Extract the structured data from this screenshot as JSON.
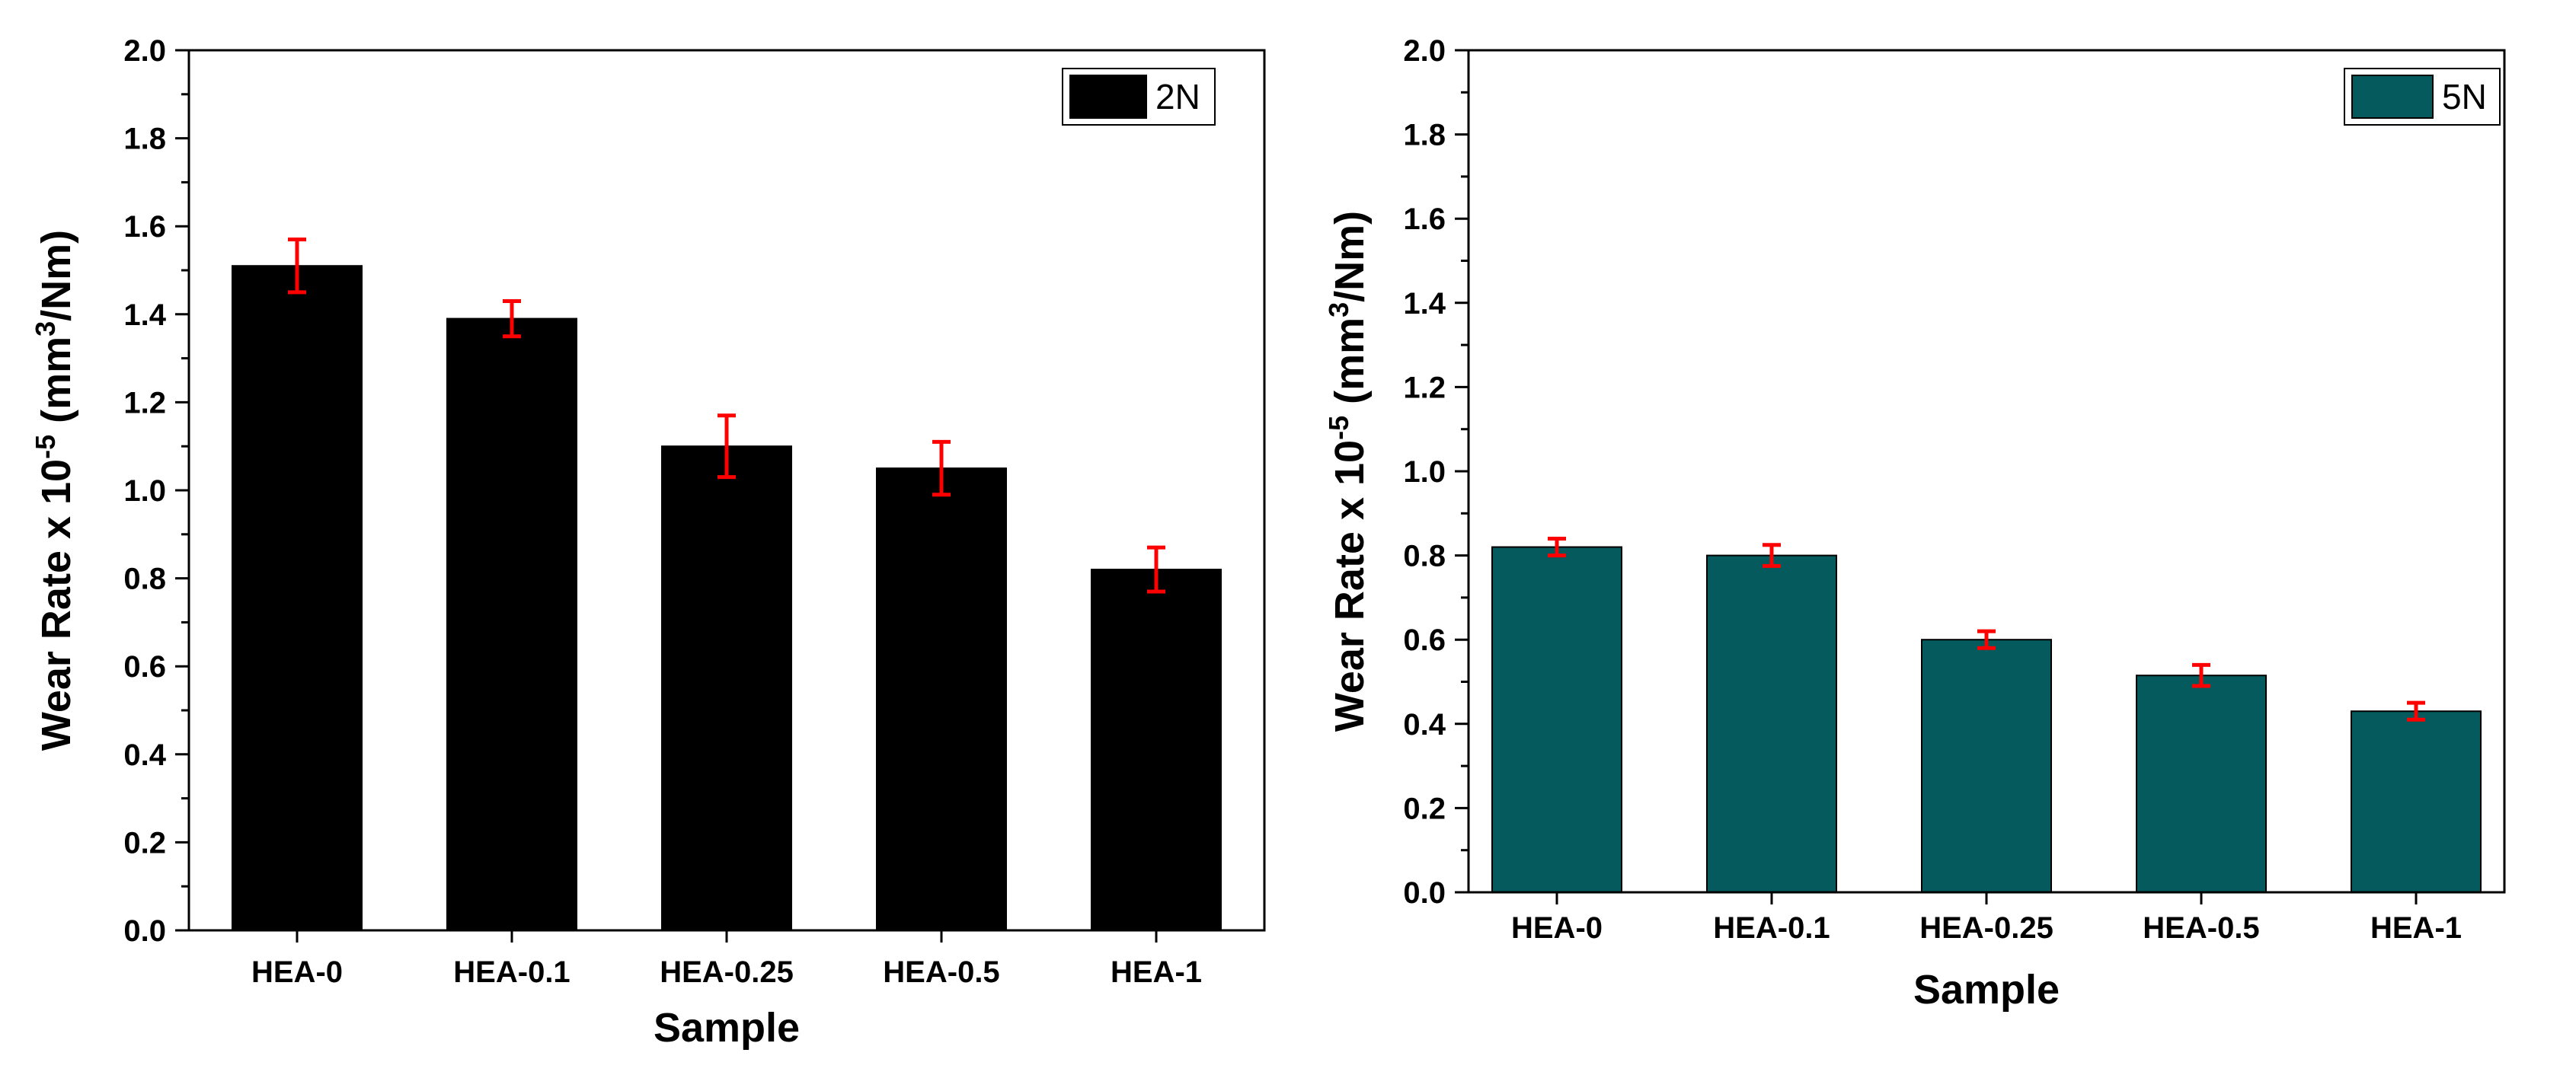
{
  "chart_data": [
    {
      "type": "bar",
      "title": "",
      "categories": [
        "HEA-0",
        "HEA-0.1",
        "HEA-0.25",
        "HEA-0.5",
        "HEA-1"
      ],
      "series": [
        {
          "name": "2N",
          "values": [
            1.51,
            1.39,
            1.1,
            1.05,
            0.82
          ],
          "errors": [
            0.06,
            0.04,
            0.07,
            0.06,
            0.05
          ],
          "color": "#000000"
        }
      ],
      "xlabel": "Sample",
      "ylabel_main": "Wear Rate x 10",
      "ylabel_exp": "-5",
      "ylabel_unit_pre": " (mm",
      "ylabel_unit_exp": "3",
      "ylabel_unit_post": "/Nm)",
      "ylim": [
        0,
        2.0
      ],
      "yticks": [
        "0.0",
        "0.2",
        "0.4",
        "0.6",
        "0.8",
        "1.0",
        "1.2",
        "1.4",
        "1.6",
        "1.8",
        "2.0"
      ],
      "legend_position": "top-right",
      "error_color": "#ff0000"
    },
    {
      "type": "bar",
      "title": "",
      "categories": [
        "HEA-0",
        "HEA-0.1",
        "HEA-0.25",
        "HEA-0.5",
        "HEA-1"
      ],
      "series": [
        {
          "name": "5N",
          "values": [
            0.82,
            0.8,
            0.6,
            0.515,
            0.43
          ],
          "errors": [
            0.02,
            0.025,
            0.02,
            0.025,
            0.02
          ],
          "color": "#045a5c"
        }
      ],
      "xlabel": "Sample",
      "ylabel_main": "Wear Rate x 10",
      "ylabel_exp": "-5",
      "ylabel_unit_pre": " (mm",
      "ylabel_unit_exp": "3",
      "ylabel_unit_post": "/Nm)",
      "ylim": [
        0,
        2.0
      ],
      "yticks": [
        "0.0",
        "0.2",
        "0.4",
        "0.6",
        "0.8",
        "1.0",
        "1.2",
        "1.4",
        "1.6",
        "1.8",
        "2.0"
      ],
      "legend_position": "top-right",
      "error_color": "#ff0000"
    }
  ]
}
